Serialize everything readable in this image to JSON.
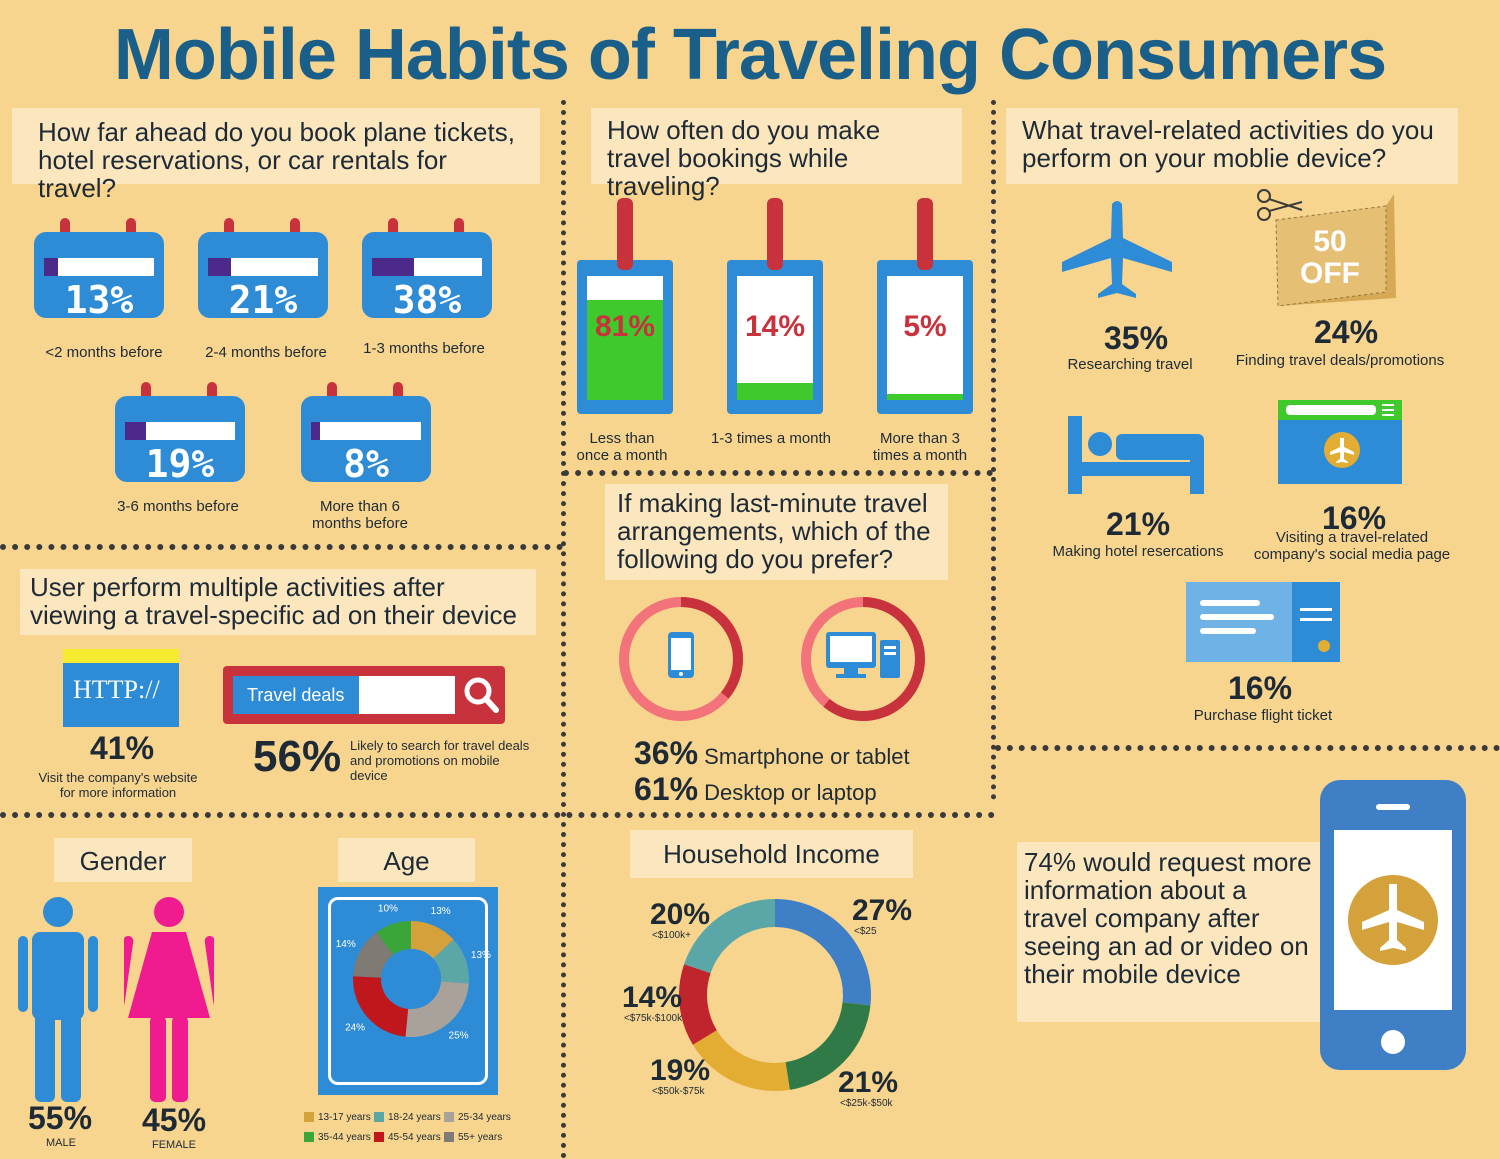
{
  "title": "Mobile Habits of Traveling Consumers",
  "booking_ahead": {
    "question": "How far ahead do you book plane tickets, hotel reservations, or car rentals for travel?",
    "items": [
      {
        "pct": "13%",
        "value": 13,
        "label": "<2 months before"
      },
      {
        "pct": "21%",
        "value": 21,
        "label": "2-4 months before"
      },
      {
        "pct": "38%",
        "value": 38,
        "label": "1-3 months before"
      },
      {
        "pct": "19%",
        "value": 19,
        "label": "3-6 months before"
      },
      {
        "pct": "8%",
        "value": 8,
        "label": "More than 6 months before"
      }
    ]
  },
  "bookings_while_traveling": {
    "question": "How often do you make travel bookings while traveling?",
    "items": [
      {
        "pct": "81%",
        "value": 81,
        "label": "Less than once a month"
      },
      {
        "pct": "14%",
        "value": 14,
        "label": "1-3 times a month"
      },
      {
        "pct": "5%",
        "value": 5,
        "label": "More than 3 times a month"
      }
    ]
  },
  "activities": {
    "question": "What travel-related activities do you perform on your moblie device?",
    "coupon_text": "50 OFF",
    "items": [
      {
        "pct": "35%",
        "label": "Researching travel",
        "icon": "airplane-icon"
      },
      {
        "pct": "24%",
        "label": "Finding travel deals/promotions",
        "icon": "coupon-icon"
      },
      {
        "pct": "21%",
        "label": "Making hotel resercations",
        "icon": "bed-icon"
      },
      {
        "pct": "16%",
        "label": "Visiting a travel-related company's social media page",
        "icon": "browser-icon"
      },
      {
        "pct": "16%",
        "label": "Purchase flight ticket",
        "icon": "ticket-icon"
      }
    ]
  },
  "after_ad": {
    "question": "User perform multiple activities after viewing a travel-specific ad on their device",
    "http_text": "HTTP://",
    "visit_pct": "41%",
    "visit_label": "Visit the company's website for more information",
    "search_placeholder": "Travel deals",
    "search_pct": "56%",
    "search_label": "Likely to search for travel deals and promotions on mobile device"
  },
  "last_minute": {
    "question": "If making last-minute travel arrangements, which of the following do you prefer?",
    "items": [
      {
        "pct": "36%",
        "value": 36,
        "label": "Smartphone or tablet"
      },
      {
        "pct": "61%",
        "value": 61,
        "label": "Desktop or laptop"
      }
    ]
  },
  "gender": {
    "title": "Gender",
    "male_pct": "55%",
    "male_label": "MALE",
    "female_pct": "45%",
    "female_label": "FEMALE"
  },
  "age": {
    "title": "Age",
    "slices": [
      {
        "pct": "13%",
        "value": 13,
        "name": "13-17 years",
        "color": "#d4a13a"
      },
      {
        "pct": "13%",
        "value": 13,
        "name": "18-24 years",
        "color": "#5ba6a6"
      },
      {
        "pct": "25%",
        "value": 25,
        "name": "25-34 years",
        "color": "#a8a29a"
      },
      {
        "pct": "24%",
        "value": 24,
        "name": "45-54 years",
        "color": "#c0171d"
      },
      {
        "pct": "14%",
        "value": 14,
        "name": "55+ years",
        "color": "#7f7a74"
      },
      {
        "pct": "10%",
        "value": 10,
        "name": "35-44 years",
        "color": "#3aa63a"
      }
    ],
    "legend": [
      "13-17 years",
      "18-24 years",
      "25-34 years",
      "35-44 years",
      "45-54 years",
      "55+ years"
    ]
  },
  "income": {
    "title": "Household Income",
    "slices": [
      {
        "pct": "27%",
        "value": 27,
        "label": "<$25",
        "color": "#3f7fc6"
      },
      {
        "pct": "21%",
        "value": 21,
        "label": "<$25k-$50k",
        "color": "#2f7a46"
      },
      {
        "pct": "19%",
        "value": 19,
        "label": "<$50k-$75k",
        "color": "#e3ad34"
      },
      {
        "pct": "14%",
        "value": 14,
        "label": "<$75k-$100k",
        "color": "#c0242c"
      },
      {
        "pct": "20%",
        "value": 20,
        "label": "<$100k+",
        "color": "#5ba6a6"
      }
    ]
  },
  "request_info": {
    "text": "74% would request more information about a travel company after seeing an ad or video on their mobile device"
  },
  "colors": {
    "background": "#f7d58e",
    "title": "#1a5f8a",
    "blue": "#2e8bd6",
    "red": "#c8323c",
    "green": "#3fc92c"
  }
}
